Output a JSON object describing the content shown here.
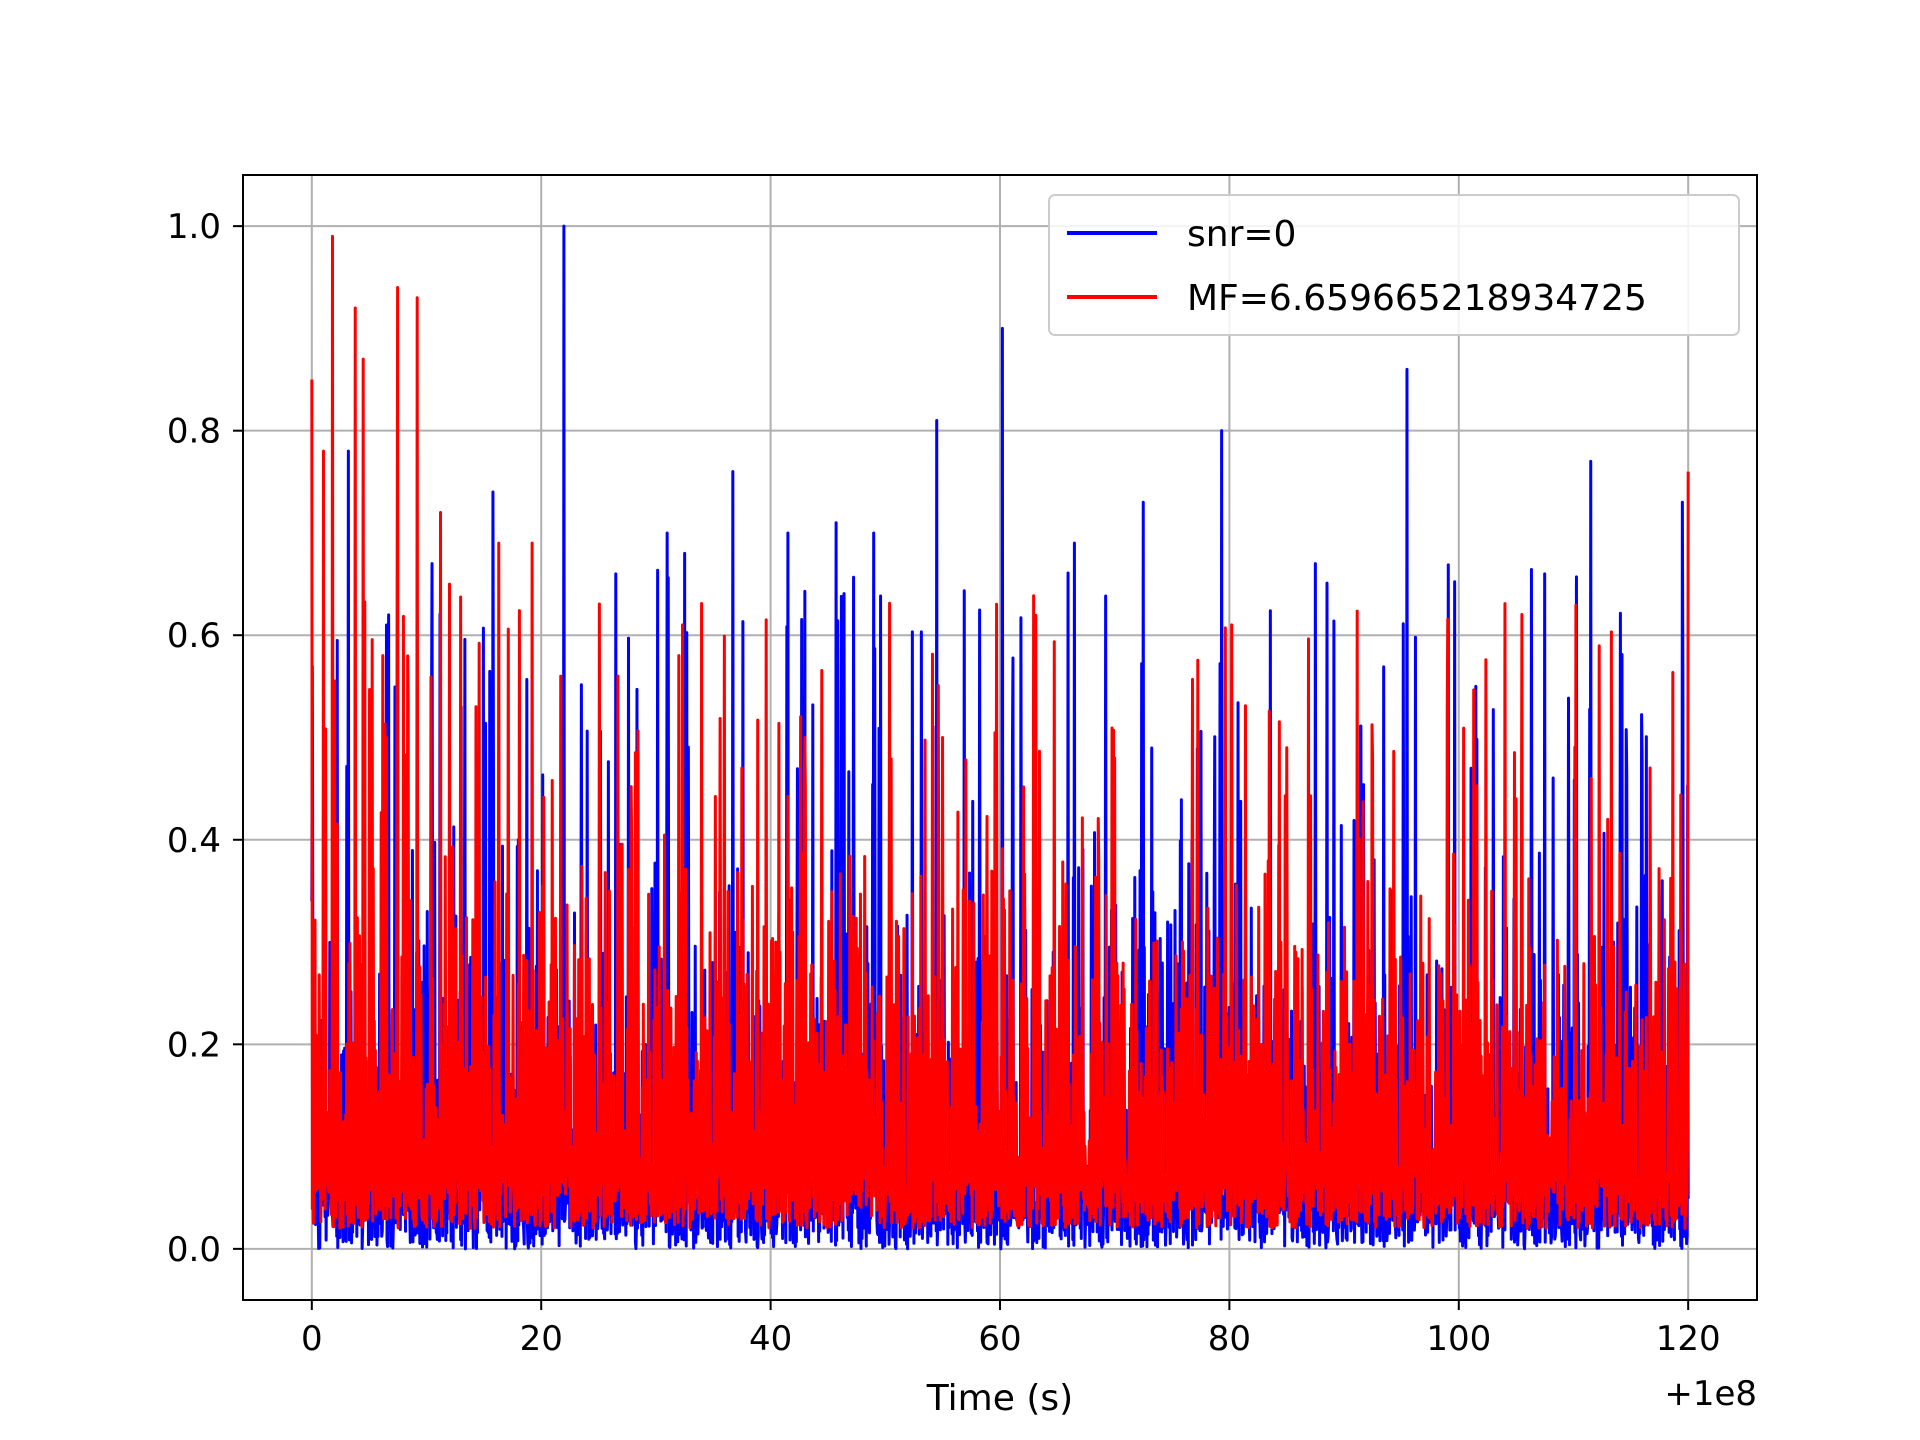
{
  "chart_data": {
    "type": "line",
    "title": "",
    "xlabel": "Time (s)",
    "ylabel": "",
    "x_offset_text": "+1e8",
    "xlim": [
      -6,
      126
    ],
    "ylim": [
      -0.05,
      1.05
    ],
    "xticks": [
      0,
      20,
      40,
      60,
      80,
      100,
      120
    ],
    "xtick_labels": [
      "0",
      "20",
      "40",
      "60",
      "80",
      "100",
      "120"
    ],
    "yticks": [
      0.0,
      0.2,
      0.4,
      0.6,
      0.8,
      1.0
    ],
    "ytick_labels": [
      "0.0",
      "0.2",
      "0.4",
      "0.6",
      "0.8",
      "1.0"
    ],
    "grid": true,
    "legend_position": "upper right",
    "series": [
      {
        "name": "snr=0",
        "color": "#0000ff",
        "x_range": [
          0,
          120
        ],
        "baseline_range": [
          0.0,
          0.45
        ],
        "peaks": [
          {
            "x": 0.0,
            "y": 0.34
          },
          {
            "x": 1.0,
            "y": 0.44
          },
          {
            "x": 3.2,
            "y": 0.78
          },
          {
            "x": 6.5,
            "y": 0.61
          },
          {
            "x": 10.5,
            "y": 0.67
          },
          {
            "x": 13.0,
            "y": 0.53
          },
          {
            "x": 15.8,
            "y": 0.74
          },
          {
            "x": 18.0,
            "y": 0.4
          },
          {
            "x": 22.0,
            "y": 1.0
          },
          {
            "x": 26.5,
            "y": 0.66
          },
          {
            "x": 31.0,
            "y": 0.7
          },
          {
            "x": 32.5,
            "y": 0.68
          },
          {
            "x": 36.7,
            "y": 0.76
          },
          {
            "x": 41.5,
            "y": 0.7
          },
          {
            "x": 45.7,
            "y": 0.71
          },
          {
            "x": 49.0,
            "y": 0.7
          },
          {
            "x": 54.5,
            "y": 0.81
          },
          {
            "x": 60.2,
            "y": 0.9
          },
          {
            "x": 66.5,
            "y": 0.69
          },
          {
            "x": 72.5,
            "y": 0.73
          },
          {
            "x": 79.3,
            "y": 0.8
          },
          {
            "x": 87.5,
            "y": 0.67
          },
          {
            "x": 95.5,
            "y": 0.86
          },
          {
            "x": 101.5,
            "y": 0.55
          },
          {
            "x": 107.5,
            "y": 0.66
          },
          {
            "x": 111.5,
            "y": 0.77
          },
          {
            "x": 119.5,
            "y": 0.73
          }
        ]
      },
      {
        "name": "MF=6.659665218934725",
        "color": "#ff0000",
        "x_range": [
          0,
          120
        ],
        "baseline_range": [
          0.02,
          0.42
        ],
        "peaks": [
          {
            "x": 0.0,
            "y": 0.85
          },
          {
            "x": 1.0,
            "y": 0.78
          },
          {
            "x": 1.8,
            "y": 0.99
          },
          {
            "x": 3.8,
            "y": 0.92
          },
          {
            "x": 4.5,
            "y": 0.87
          },
          {
            "x": 6.2,
            "y": 0.58
          },
          {
            "x": 7.5,
            "y": 0.94
          },
          {
            "x": 9.2,
            "y": 0.93
          },
          {
            "x": 11.2,
            "y": 0.72
          },
          {
            "x": 12.0,
            "y": 0.65
          },
          {
            "x": 16.3,
            "y": 0.69
          },
          {
            "x": 19.2,
            "y": 0.69
          },
          {
            "x": 21.7,
            "y": 0.56
          },
          {
            "x": 26.7,
            "y": 0.56
          },
          {
            "x": 32.0,
            "y": 0.58
          },
          {
            "x": 37.5,
            "y": 0.47
          },
          {
            "x": 43.0,
            "y": 0.5
          },
          {
            "x": 55.0,
            "y": 0.5
          },
          {
            "x": 70.0,
            "y": 0.48
          },
          {
            "x": 85.0,
            "y": 0.49
          },
          {
            "x": 92.5,
            "y": 0.48
          },
          {
            "x": 105.0,
            "y": 0.44
          },
          {
            "x": 113.0,
            "y": 0.42
          },
          {
            "x": 120.0,
            "y": 0.76
          }
        ]
      }
    ]
  }
}
